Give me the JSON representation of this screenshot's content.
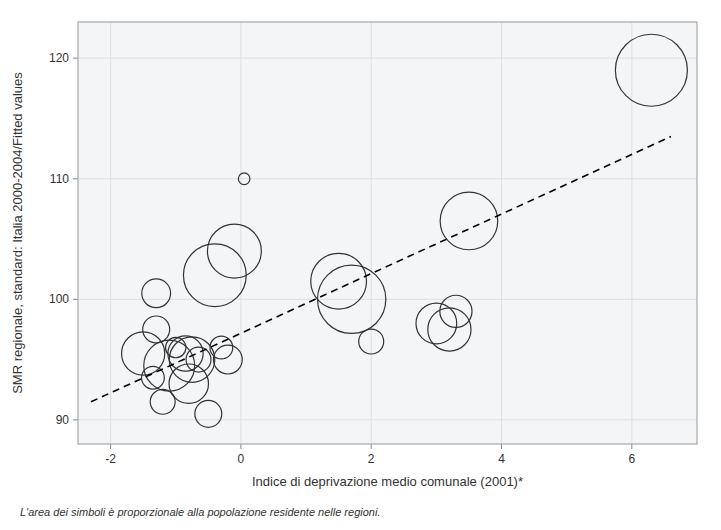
{
  "chart_data": {
    "type": "scatter",
    "xlabel": "Indice di deprivazione medio comunale (2001)*",
    "ylabel": "SMR regionale, standard: Italia 2000-2004/Fitted values",
    "footnote": "L'area dei simboli è proporzionale alla popolazione residente nelle regioni.",
    "xlim": [
      -2.5,
      7.0
    ],
    "ylim": [
      88,
      123
    ],
    "xticks": [
      -2,
      0,
      2,
      4,
      6
    ],
    "yticks": [
      90,
      100,
      110,
      120
    ],
    "grid": true,
    "series": [
      {
        "type": "scatter",
        "marker": "circle",
        "color": "#333333",
        "x": [
          -1.5,
          -1.35,
          -1.3,
          -1.2,
          -1.1,
          -1.0,
          -0.85,
          -0.8,
          -0.75,
          -0.65,
          -0.5,
          -0.4,
          -0.3,
          -0.2,
          -0.1,
          -1.3,
          0.05,
          1.5,
          1.7,
          2.0,
          3.0,
          3.2,
          3.3,
          3.5,
          6.3
        ],
        "values": [
          95.5,
          93.5,
          97.5,
          91.5,
          94.5,
          96.0,
          95.5,
          93.0,
          95.0,
          95.0,
          90.5,
          102.0,
          96.0,
          95.0,
          104.0,
          100.5,
          110.0,
          101.5,
          100.0,
          96.5,
          98.0,
          97.5,
          99.0,
          106.5,
          119.0
        ],
        "sizes": [
          1800000,
          500000,
          700000,
          600000,
          2500000,
          400000,
          1200000,
          1500000,
          2000000,
          600000,
          700000,
          3800000,
          500000,
          800000,
          2800000,
          800000,
          130000,
          3000000,
          4500000,
          600000,
          1600000,
          1800000,
          1000000,
          3200000,
          5000000
        ]
      },
      {
        "type": "line",
        "line_style": "dashed",
        "color": "#000000",
        "x": [
          -2.3,
          6.6
        ],
        "values": [
          91.5,
          113.5
        ]
      }
    ]
  }
}
